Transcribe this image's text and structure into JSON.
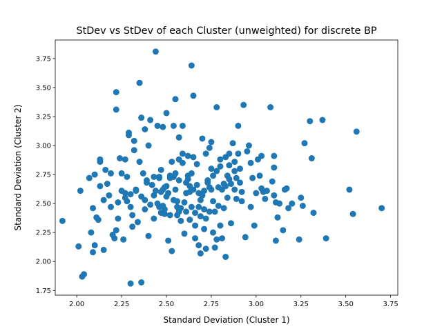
{
  "chart_data": {
    "type": "scatter",
    "title": "StDev vs StDev of each Cluster (unweighted) for discrete BP",
    "xlabel": "Standard Deviation (Cluster 1)",
    "ylabel": "Standard Deviation (Cluster 2)",
    "xlim": [
      1.88,
      3.79
    ],
    "ylim": [
      1.71,
      3.91
    ],
    "xticks": [
      "2.00",
      "2.25",
      "2.50",
      "2.75",
      "3.00",
      "3.25",
      "3.50",
      "3.75"
    ],
    "yticks": [
      "1.75",
      "2.00",
      "2.25",
      "2.50",
      "2.75",
      "3.00",
      "3.25",
      "3.50",
      "3.75"
    ],
    "grid": false,
    "marker_color": "#1f77b4",
    "x": [
      1.92,
      2.01,
      2.02,
      2.03,
      2.04,
      2.07,
      2.08,
      2.09,
      2.09,
      2.1,
      2.1,
      2.11,
      2.12,
      2.13,
      2.13,
      2.13,
      2.15,
      2.15,
      2.16,
      2.17,
      2.18,
      2.19,
      2.19,
      2.2,
      2.21,
      2.22,
      2.22,
      2.23,
      2.23,
      2.24,
      2.25,
      2.26,
      2.27,
      2.27,
      2.28,
      2.28,
      2.29,
      2.3,
      2.3,
      2.31,
      2.31,
      2.32,
      2.32,
      2.33,
      2.34,
      2.35,
      2.36,
      2.36,
      2.37,
      2.38,
      2.38,
      2.39,
      2.4,
      2.4,
      2.41,
      2.42,
      2.43,
      2.43,
      2.44,
      2.45,
      2.45,
      2.46,
      2.46,
      2.47,
      2.47,
      2.48,
      2.48,
      2.49,
      2.49,
      2.5,
      2.5,
      2.51,
      2.51,
      2.52,
      2.52,
      2.53,
      2.53,
      2.54,
      2.54,
      2.55,
      2.55,
      2.56,
      2.56,
      2.57,
      2.57,
      2.58,
      2.58,
      2.59,
      2.59,
      2.6,
      2.6,
      2.61,
      2.61,
      2.62,
      2.62,
      2.63,
      2.63,
      2.64,
      2.64,
      2.65,
      2.65,
      2.66,
      2.66,
      2.67,
      2.67,
      2.68,
      2.68,
      2.69,
      2.69,
      2.7,
      2.7,
      2.71,
      2.71,
      2.72,
      2.72,
      2.73,
      2.73,
      2.74,
      2.74,
      2.75,
      2.75,
      2.76,
      2.76,
      2.77,
      2.77,
      2.78,
      2.78,
      2.79,
      2.79,
      2.8,
      2.8,
      2.81,
      2.82,
      2.82,
      2.83,
      2.83,
      2.84,
      2.84,
      2.85,
      2.85,
      2.86,
      2.86,
      2.87,
      2.88,
      2.88,
      2.89,
      2.9,
      2.9,
      2.91,
      2.92,
      2.92,
      2.93,
      2.94,
      2.95,
      2.96,
      2.97,
      2.98,
      2.99,
      3.0,
      3.01,
      3.02,
      3.03,
      3.04,
      3.05,
      3.06,
      3.08,
      3.09,
      3.1,
      3.1,
      3.1,
      3.11,
      3.11,
      3.12,
      3.13,
      3.15,
      3.16,
      3.17,
      3.18,
      3.2,
      3.24,
      3.25,
      3.26,
      3.27,
      3.3,
      3.31,
      3.32,
      3.37,
      3.39,
      3.52,
      3.54,
      3.56,
      3.7,
      2.22,
      2.29,
      2.35,
      2.55,
      2.64,
      2.44,
      2.75,
      2.66,
      2.43,
      2.57,
      2.38,
      2.52,
      2.47,
      2.68,
      2.33,
      2.59,
      2.72,
      2.8,
      2.49,
      2.61,
      2.36,
      2.85,
      2.91,
      2.27,
      2.46,
      2.54,
      2.63,
      2.71,
      2.78,
      2.41,
      2.57,
      2.65,
      2.5,
      2.69,
      2.76,
      2.83,
      2.89,
      2.97,
      2.3,
      2.39,
      2.48,
      2.56,
      2.62,
      2.74,
      2.81,
      2.88,
      3.03,
      2.25
    ],
    "y": [
      2.35,
      2.13,
      2.61,
      1.87,
      1.89,
      2.72,
      2.25,
      2.08,
      2.46,
      2.14,
      2.75,
      2.38,
      2.36,
      2.88,
      2.86,
      2.65,
      2.1,
      2.53,
      2.79,
      2.67,
      2.57,
      2.47,
      2.76,
      2.23,
      2.2,
      2.27,
      3.31,
      2.51,
      2.37,
      2.89,
      2.61,
      2.19,
      2.88,
      2.59,
      2.52,
      2.73,
      3.11,
      2.47,
      1.81,
      2.4,
      2.3,
      2.96,
      3.04,
      2.62,
      2.34,
      2.86,
      3.24,
      1.82,
      2.76,
      3.14,
      2.45,
      2.68,
      3.0,
      2.22,
      3.22,
      2.66,
      2.37,
      2.57,
      2.61,
      3.17,
      2.5,
      2.47,
      2.72,
      2.79,
      2.42,
      2.48,
      3.16,
      2.41,
      2.64,
      2.56,
      3.28,
      2.59,
      2.18,
      2.74,
      2.4,
      2.09,
      2.86,
      2.53,
      3.17,
      2.76,
      2.62,
      2.47,
      2.4,
      3.07,
      2.7,
      2.46,
      2.35,
      3.17,
      2.93,
      2.51,
      2.24,
      2.68,
      2.43,
      2.91,
      2.71,
      2.6,
      2.36,
      2.47,
      2.76,
      3.43,
      2.9,
      2.42,
      2.2,
      2.66,
      2.84,
      2.59,
      2.14,
      2.07,
      2.39,
      2.57,
      3.06,
      2.28,
      2.61,
      2.93,
      2.11,
      2.7,
      2.68,
      2.43,
      2.98,
      3.03,
      2.8,
      2.52,
      2.25,
      2.12,
      2.43,
      3.33,
      2.19,
      2.64,
      2.48,
      2.88,
      2.31,
      2.2,
      2.46,
      2.67,
      2.9,
      2.04,
      2.55,
      2.74,
      2.83,
      2.93,
      2.67,
      2.33,
      3.02,
      2.62,
      2.86,
      2.54,
      3.17,
      2.93,
      2.8,
      2.6,
      2.52,
      3.35,
      2.21,
      2.95,
      3.0,
      2.47,
      2.72,
      2.31,
      2.59,
      2.88,
      2.74,
      2.63,
      2.6,
      2.54,
      2.61,
      3.33,
      2.69,
      2.91,
      2.57,
      2.81,
      2.51,
      2.18,
      2.38,
      2.5,
      2.27,
      2.62,
      2.63,
      2.46,
      2.5,
      2.19,
      2.55,
      2.48,
      3.02,
      3.21,
      2.89,
      2.42,
      3.22,
      2.2,
      2.62,
      2.41,
      3.12,
      2.46,
      3.46,
      3.09,
      3.54,
      3.4,
      3.69,
      3.81,
      2.62,
      2.31,
      2.73,
      2.88,
      2.53,
      2.72,
      2.6,
      2.47,
      2.61,
      2.85,
      2.37,
      2.82,
      2.45,
      2.59,
      2.56,
      2.71,
      2.68,
      2.55,
      2.73,
      2.73,
      2.65,
      2.45,
      2.78,
      2.49,
      2.43,
      2.62,
      2.65,
      2.53,
      2.74,
      2.65,
      2.72,
      2.85,
      2.58,
      2.7,
      2.62,
      2.52,
      2.74,
      2.64,
      2.62,
      2.78,
      2.91,
      2.76
    ]
  }
}
